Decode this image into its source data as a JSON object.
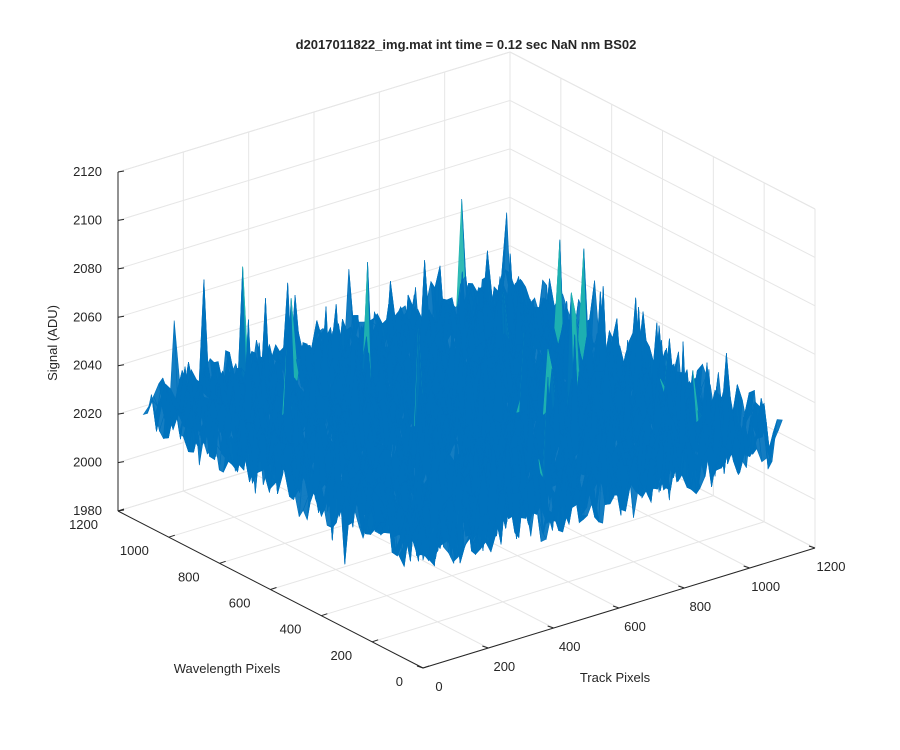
{
  "chart_data": {
    "type": "surface",
    "title": "d2017011822_img.mat int time = 0.12 sec  NaN nm BS02",
    "xlabel": "Track Pixels",
    "ylabel": "Wavelength Pixels",
    "zlabel": "Signal (ADU)",
    "xlim": [
      0,
      1200
    ],
    "ylim": [
      0,
      1200
    ],
    "zlim": [
      1980,
      2120
    ],
    "x_ticks": [
      "0",
      "200",
      "400",
      "600",
      "800",
      "1000",
      "1200"
    ],
    "y_ticks": [
      "0",
      "200",
      "400",
      "600",
      "800",
      "1000",
      "1200"
    ],
    "z_ticks": [
      "1980",
      "2000",
      "2020",
      "2040",
      "2060",
      "2080",
      "2100",
      "2120"
    ],
    "grid": true,
    "colormap": "parula",
    "data_x_range": [
      0,
      1100
    ],
    "data_y_range": [
      0,
      1100
    ],
    "surface_baseline_signal": 2030,
    "surface_noise_range": [
      1995,
      2105
    ],
    "colors": {
      "low": "#0072bd",
      "mid": "#1fb5b0",
      "high": "#e0d24a",
      "axis": "#262626",
      "grid": "#e6e6e6"
    }
  }
}
